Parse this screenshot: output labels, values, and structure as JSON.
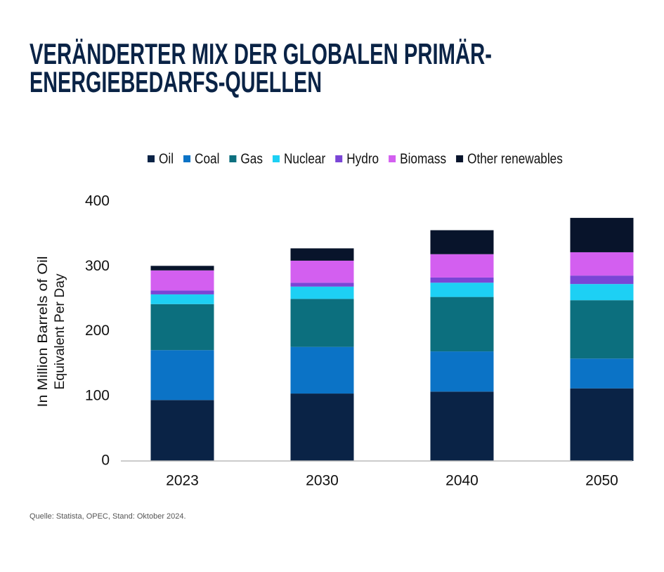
{
  "chart_data": {
    "type": "stacked_bar",
    "title": [
      "VERÄNDERTER MIX DER GLOBALEN PRIMÄR-",
      "ENERGIEBEDARFS-QUELLEN"
    ],
    "y_label": [
      "In Million Barrels of Oil",
      "Equivalent Per Day"
    ],
    "source": "Quelle: Statista, OPEC, Stand: Oktober 2024.",
    "categories": [
      "2023",
      "2030",
      "2040",
      "2050"
    ],
    "series": [
      {
        "name": "Oil",
        "color": "#0a2346",
        "values": [
          94,
          104,
          107,
          112
        ]
      },
      {
        "name": "Coal",
        "color": "#0b73c6",
        "values": [
          77,
          72,
          62,
          46
        ]
      },
      {
        "name": "Gas",
        "color": "#0c6f7e",
        "values": [
          71,
          74,
          84,
          90
        ]
      },
      {
        "name": "Nuclear",
        "color": "#1dd0f4",
        "values": [
          15,
          19,
          22,
          25
        ]
      },
      {
        "name": "Hydro",
        "color": "#7a45d6",
        "values": [
          6,
          6,
          8,
          13
        ]
      },
      {
        "name": "Biomass",
        "color": "#d35ff0",
        "values": [
          31,
          34,
          36,
          36
        ]
      },
      {
        "name": "Other renewables",
        "color": "#08142b",
        "values": [
          7,
          19,
          37,
          53
        ]
      }
    ],
    "ylim": [
      0,
      400
    ],
    "yticks": [
      0,
      100,
      200,
      300,
      400
    ],
    "grid": false,
    "legend": "top"
  }
}
